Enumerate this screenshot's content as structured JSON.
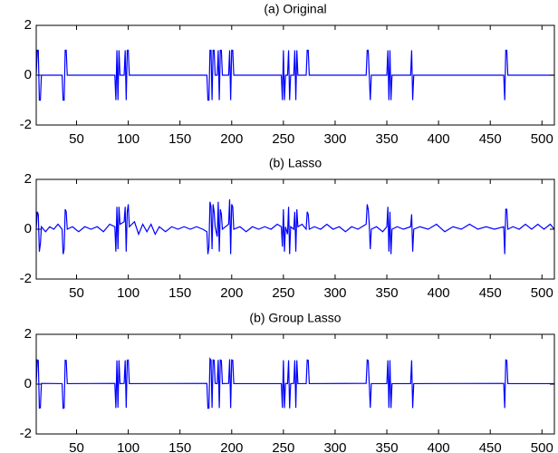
{
  "chart_data": [
    {
      "type": "line",
      "title": "(a) Original",
      "x": [
        11,
        12,
        13,
        14,
        15,
        16,
        36,
        37,
        38,
        39,
        40,
        41,
        87,
        88,
        89,
        90,
        91,
        92,
        96,
        97,
        98,
        99,
        100,
        101,
        176,
        177,
        178,
        179,
        180,
        181,
        182,
        183,
        184,
        186,
        187,
        188,
        189,
        190,
        191,
        197,
        198,
        199,
        200,
        201,
        202,
        248,
        249,
        250,
        251,
        252,
        254,
        255,
        256,
        257,
        260,
        261,
        262,
        263,
        264,
        272,
        273,
        274,
        275,
        330,
        331,
        332,
        333,
        334,
        335,
        350,
        351,
        352,
        353,
        354,
        355,
        373,
        374,
        375,
        376,
        463,
        464,
        465,
        466,
        467,
        512
      ],
      "series": [
        {
          "color": "#0000ff",
          "values": [
            0,
            1,
            1,
            -1,
            -1,
            0,
            0,
            -1,
            -1,
            1,
            1,
            0,
            0,
            -1,
            1,
            -1,
            1,
            0,
            0,
            1,
            -1,
            1,
            1,
            0,
            0,
            -1,
            -1,
            1,
            1,
            -1,
            1,
            1,
            0,
            0,
            1,
            -1,
            1,
            1,
            0,
            0,
            1,
            -1,
            1,
            1,
            0,
            0,
            -1,
            1,
            -1,
            0,
            0,
            1,
            -1,
            0,
            0,
            1,
            -1,
            1,
            0,
            0,
            1,
            1,
            0,
            0,
            1,
            1,
            0,
            -1,
            0,
            0,
            1,
            -1,
            1,
            -1,
            0,
            0,
            1,
            -1,
            0,
            0,
            -1,
            1,
            1,
            0,
            0
          ]
        }
      ],
      "xlim": [
        11,
        512
      ],
      "xticks": [
        50,
        100,
        150,
        200,
        250,
        300,
        350,
        400,
        450,
        500
      ],
      "ylim": [
        -2,
        2
      ],
      "yticks": [
        -2,
        0,
        2
      ]
    },
    {
      "type": "line",
      "title": "(b) Lasso",
      "x": [
        11,
        12,
        13,
        14,
        15,
        16,
        20,
        24,
        28,
        32,
        36,
        37,
        38,
        39,
        40,
        41,
        46,
        52,
        58,
        64,
        70,
        76,
        82,
        87,
        88,
        89,
        90,
        91,
        92,
        96,
        97,
        98,
        99,
        100,
        101,
        106,
        110,
        114,
        118,
        122,
        126,
        130,
        136,
        142,
        148,
        154,
        160,
        166,
        172,
        176,
        177,
        178,
        179,
        180,
        181,
        182,
        183,
        184,
        186,
        187,
        188,
        189,
        190,
        191,
        197,
        198,
        199,
        200,
        201,
        202,
        208,
        214,
        220,
        226,
        232,
        238,
        244,
        248,
        249,
        250,
        251,
        252,
        254,
        255,
        256,
        257,
        260,
        261,
        262,
        263,
        264,
        268,
        272,
        273,
        274,
        275,
        280,
        286,
        292,
        298,
        304,
        310,
        316,
        322,
        330,
        331,
        332,
        333,
        334,
        335,
        340,
        346,
        350,
        351,
        352,
        353,
        354,
        355,
        360,
        366,
        373,
        374,
        375,
        376,
        382,
        390,
        398,
        406,
        414,
        422,
        430,
        438,
        446,
        454,
        463,
        464,
        465,
        466,
        467,
        472,
        478,
        484,
        490,
        496,
        502,
        508,
        512
      ],
      "series": [
        {
          "color": "#0000ff",
          "values": [
            0,
            0.7,
            0.6,
            -0.9,
            -0.6,
            0.1,
            -0.1,
            0.1,
            0,
            0.2,
            0,
            -1,
            -0.8,
            0.8,
            0.7,
            0,
            0.1,
            -0.1,
            0.1,
            0,
            0.1,
            -0.1,
            0.2,
            0.1,
            -0.9,
            0.9,
            -0.8,
            0.9,
            0.2,
            0.3,
            0.9,
            -0.9,
            0.7,
            1,
            0.1,
            0.3,
            -0.2,
            0.2,
            -0.1,
            0.2,
            -0.2,
            0.1,
            -0.1,
            0.1,
            0,
            0.1,
            0,
            0.1,
            0,
            -0.1,
            -1,
            -0.7,
            1.1,
            0.9,
            -0.8,
            1,
            0.7,
            0.1,
            -0.3,
            1.1,
            -0.9,
            0.8,
            0.6,
            0,
            0.2,
            1.2,
            -1,
            1,
            0.9,
            0,
            0.1,
            -0.1,
            0.1,
            0,
            0.1,
            0,
            0.2,
            0.1,
            -0.7,
            0.8,
            -0.9,
            0.1,
            -0.2,
            0.9,
            -1,
            0.1,
            0,
            0.7,
            -0.9,
            0.8,
            0.1,
            0.2,
            0,
            0.7,
            0.6,
            0,
            0.1,
            0,
            0.2,
            0,
            0.1,
            -0.1,
            0.1,
            0,
            0.2,
            1,
            0.8,
            0.2,
            -0.8,
            0,
            0.1,
            -0.1,
            0.1,
            0.9,
            -0.9,
            0.7,
            -1,
            0,
            0.1,
            0,
            0.1,
            0.6,
            -0.9,
            0,
            0.1,
            0,
            0.2,
            -0.1,
            0.1,
            0,
            0.2,
            0,
            0.1,
            0,
            0.1,
            -1,
            0.8,
            0.8,
            0,
            0.1,
            0,
            0.2,
            0,
            0.2,
            0,
            0.2,
            0
          ]
        }
      ],
      "xlim": [
        11,
        512
      ],
      "xticks": [
        50,
        100,
        150,
        200,
        250,
        300,
        350,
        400,
        450,
        500
      ],
      "ylim": [
        -2,
        2
      ],
      "yticks": [
        -2,
        0,
        2
      ]
    },
    {
      "type": "line",
      "title": "(b) Group Lasso",
      "x": [
        11,
        12,
        13,
        14,
        15,
        16,
        36,
        37,
        38,
        39,
        40,
        41,
        87,
        88,
        89,
        90,
        91,
        92,
        96,
        97,
        98,
        99,
        100,
        101,
        176,
        177,
        178,
        179,
        180,
        181,
        182,
        183,
        184,
        186,
        187,
        188,
        189,
        190,
        191,
        197,
        198,
        199,
        200,
        201,
        202,
        248,
        249,
        250,
        251,
        252,
        254,
        255,
        256,
        257,
        260,
        261,
        262,
        263,
        264,
        272,
        273,
        274,
        275,
        330,
        331,
        332,
        333,
        334,
        335,
        350,
        351,
        352,
        353,
        354,
        355,
        373,
        374,
        375,
        376,
        463,
        464,
        465,
        466,
        467,
        512
      ],
      "series": [
        {
          "color": "#0000ff",
          "values": [
            0.02,
            0.97,
            0.95,
            -0.96,
            -0.95,
            0.03,
            0.02,
            -0.97,
            -0.95,
            0.96,
            0.95,
            0.02,
            0.03,
            -0.96,
            0.95,
            -0.94,
            0.96,
            0.02,
            0.03,
            0.96,
            -0.95,
            0.96,
            0.97,
            0.02,
            0.03,
            -0.97,
            -0.96,
            1.02,
            0.96,
            -0.95,
            0.97,
            0.96,
            0.03,
            0.02,
            0.97,
            -0.96,
            0.97,
            0.95,
            0.02,
            0.03,
            1,
            -0.96,
            0.97,
            0.96,
            0.02,
            0.02,
            -0.95,
            0.96,
            -0.96,
            0.03,
            0.02,
            0.96,
            -0.97,
            0.02,
            0.03,
            0.96,
            -0.95,
            0.96,
            0.02,
            0.02,
            0.97,
            0.96,
            0.02,
            0.03,
            0.97,
            0.95,
            0.02,
            -0.95,
            0.02,
            0.02,
            0.96,
            -0.95,
            0.96,
            -0.96,
            0.02,
            0.02,
            0.96,
            -0.96,
            0.02,
            0.03,
            -0.96,
            0.97,
            0.96,
            0.02,
            0.02
          ]
        }
      ],
      "xlim": [
        11,
        512
      ],
      "xticks": [
        50,
        100,
        150,
        200,
        250,
        300,
        350,
        400,
        450,
        500
      ],
      "ylim": [
        -2,
        2
      ],
      "yticks": [
        -2,
        0,
        2
      ]
    }
  ]
}
